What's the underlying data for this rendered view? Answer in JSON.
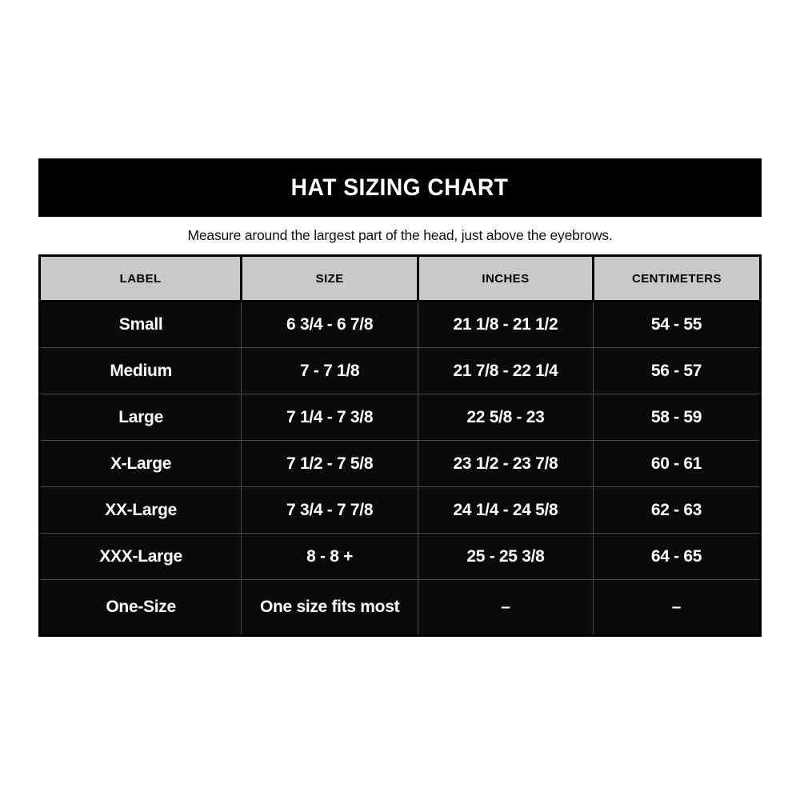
{
  "banner": {
    "title": "HAT SIZING CHART"
  },
  "subtitle": "Measure around the largest part of the head, just above the eyebrows.",
  "chart_data": {
    "type": "table",
    "title": "HAT SIZING CHART",
    "note": "Measure around the largest part of the head, just above the eyebrows.",
    "columns": [
      "LABEL",
      "SIZE",
      "INCHES",
      "CENTIMETERS"
    ],
    "rows": [
      [
        "Small",
        "6 3/4 - 6 7/8",
        "21 1/8 - 21 1/2",
        "54 - 55"
      ],
      [
        "Medium",
        "7 - 7 1/8",
        "21 7/8 - 22 1/4",
        "56 - 57"
      ],
      [
        "Large",
        "7 1/4 - 7 3/8",
        "22 5/8 - 23",
        "58 - 59"
      ],
      [
        "X-Large",
        "7 1/2 - 7 5/8",
        "23 1/2 - 23 7/8",
        "60 - 61"
      ],
      [
        "XX-Large",
        "7 3/4 - 7 7/8",
        "24 1/4 - 24 5/8",
        "62 - 63"
      ],
      [
        "XXX-Large",
        "8 - 8 +",
        "25 - 25 3/8",
        "64 - 65"
      ],
      [
        "One-Size",
        "One size fits most",
        "–",
        "–"
      ]
    ]
  },
  "colors": {
    "banner_bg": "#000000",
    "banner_text": "#ffffff",
    "header_bg": "#c9c9c9",
    "header_text": "#000000",
    "row_bg": "#0a0a0a",
    "row_text": "#ffffff",
    "divider": "#4a4a4a",
    "page_bg": "#ffffff"
  }
}
